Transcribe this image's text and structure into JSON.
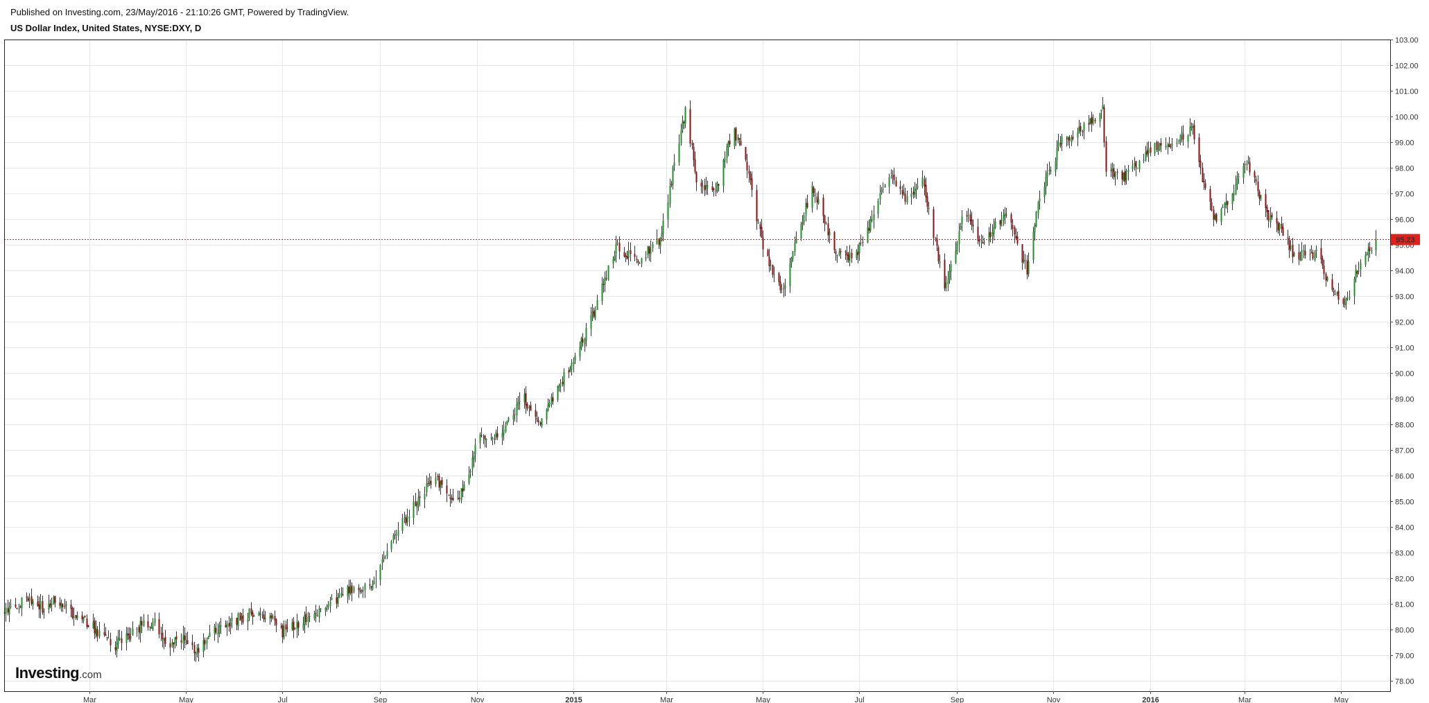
{
  "header": {
    "published": "Published on Investing.com, 23/May/2016 - 21:10:26 GMT, Powered by TradingView.",
    "title": "US Dollar Index, United States, NYSE:DXY, D"
  },
  "logo": {
    "main": "Investing",
    "suffix": ".com"
  },
  "colors": {
    "up": "#1e8f2a",
    "down": "#8b0f0f",
    "price_line": "#e0201b",
    "grid": "#e8e8e8",
    "frame": "#222222"
  },
  "chart_data": {
    "type": "candlestick",
    "ylim": [
      77.6,
      103.0
    ],
    "y_ticks": [
      "78.00",
      "79.00",
      "80.00",
      "81.00",
      "82.00",
      "83.00",
      "84.00",
      "85.00",
      "86.00",
      "87.00",
      "88.00",
      "89.00",
      "90.00",
      "91.00",
      "92.00",
      "93.00",
      "94.00",
      "95.00",
      "96.00",
      "97.00",
      "98.00",
      "99.00",
      "100.00",
      "101.00",
      "102.00",
      "103.00"
    ],
    "x_ticks": [
      {
        "label": "Mar",
        "date": "2014-03-01",
        "bold": false
      },
      {
        "label": "May",
        "date": "2014-05-01",
        "bold": false
      },
      {
        "label": "Jul",
        "date": "2014-07-01",
        "bold": false
      },
      {
        "label": "Sep",
        "date": "2014-09-01",
        "bold": false
      },
      {
        "label": "Nov",
        "date": "2014-11-01",
        "bold": false
      },
      {
        "label": "2015",
        "date": "2015-01-01",
        "bold": true
      },
      {
        "label": "Mar",
        "date": "2015-03-01",
        "bold": false
      },
      {
        "label": "May",
        "date": "2015-05-01",
        "bold": false
      },
      {
        "label": "Jul",
        "date": "2015-07-01",
        "bold": false
      },
      {
        "label": "Sep",
        "date": "2015-09-01",
        "bold": false
      },
      {
        "label": "Nov",
        "date": "2015-11-01",
        "bold": false
      },
      {
        "label": "2016",
        "date": "2016-01-01",
        "bold": true
      },
      {
        "label": "Mar",
        "date": "2016-03-01",
        "bold": false
      },
      {
        "label": "May",
        "date": "2016-05-01",
        "bold": false
      }
    ],
    "x_range": [
      "2014-01-06",
      "2016-06-01"
    ],
    "last_price": "95.23",
    "grid": true,
    "close_path": [
      [
        "2014-01-06",
        80.6
      ],
      [
        "2014-01-20",
        81.2
      ],
      [
        "2014-02-01",
        80.8
      ],
      [
        "2014-02-08",
        81.2
      ],
      [
        "2014-02-20",
        80.4
      ],
      [
        "2014-03-01",
        80.2
      ],
      [
        "2014-03-17",
        79.4
      ],
      [
        "2014-04-01",
        80.1
      ],
      [
        "2014-04-10",
        80.3
      ],
      [
        "2014-04-20",
        79.4
      ],
      [
        "2014-05-01",
        79.7
      ],
      [
        "2014-05-08",
        79.1
      ],
      [
        "2014-05-20",
        80.0
      ],
      [
        "2014-06-10",
        80.6
      ],
      [
        "2014-06-25",
        80.4
      ],
      [
        "2014-07-01",
        79.9
      ],
      [
        "2014-07-20",
        80.6
      ],
      [
        "2014-08-10",
        81.5
      ],
      [
        "2014-08-25",
        81.7
      ],
      [
        "2014-09-01",
        82.5
      ],
      [
        "2014-09-15",
        84.2
      ],
      [
        "2014-09-25",
        85.0
      ],
      [
        "2014-10-05",
        86.0
      ],
      [
        "2014-10-15",
        85.0
      ],
      [
        "2014-10-25",
        85.5
      ],
      [
        "2014-11-01",
        87.5
      ],
      [
        "2014-11-15",
        87.7
      ],
      [
        "2014-12-01",
        89.0
      ],
      [
        "2014-12-10",
        88.1
      ],
      [
        "2015-01-01",
        90.5
      ],
      [
        "2015-01-15",
        92.5
      ],
      [
        "2015-01-28",
        95.0
      ],
      [
        "2015-02-10",
        94.3
      ],
      [
        "2015-02-25",
        95.2
      ],
      [
        "2015-03-10",
        99.5
      ],
      [
        "2015-03-13",
        100.2
      ],
      [
        "2015-03-20",
        97.5
      ],
      [
        "2015-04-01",
        97.0
      ],
      [
        "2015-04-12",
        99.6
      ],
      [
        "2015-04-22",
        97.8
      ],
      [
        "2015-05-01",
        94.8
      ],
      [
        "2015-05-14",
        93.2
      ],
      [
        "2015-05-25",
        95.8
      ],
      [
        "2015-06-01",
        97.3
      ],
      [
        "2015-06-15",
        94.8
      ],
      [
        "2015-06-28",
        94.5
      ],
      [
        "2015-07-10",
        96.2
      ],
      [
        "2015-07-20",
        97.8
      ],
      [
        "2015-07-30",
        96.8
      ],
      [
        "2015-08-10",
        97.6
      ],
      [
        "2015-08-24",
        93.2
      ],
      [
        "2015-09-05",
        96.2
      ],
      [
        "2015-09-18",
        95.0
      ],
      [
        "2015-10-01",
        96.3
      ],
      [
        "2015-10-15",
        94.0
      ],
      [
        "2015-10-23",
        96.8
      ],
      [
        "2015-11-05",
        99.0
      ],
      [
        "2015-11-20",
        99.6
      ],
      [
        "2015-12-02",
        100.3
      ],
      [
        "2015-12-04",
        98.0
      ],
      [
        "2015-12-15",
        97.6
      ],
      [
        "2016-01-01",
        98.7
      ],
      [
        "2016-01-15",
        99.0
      ],
      [
        "2016-01-28",
        99.5
      ],
      [
        "2016-02-05",
        97.0
      ],
      [
        "2016-02-12",
        95.8
      ],
      [
        "2016-02-25",
        97.4
      ],
      [
        "2016-03-02",
        98.2
      ],
      [
        "2016-03-15",
        96.2
      ],
      [
        "2016-03-25",
        95.5
      ],
      [
        "2016-04-01",
        94.6
      ],
      [
        "2016-04-15",
        94.6
      ],
      [
        "2016-04-29",
        92.8
      ],
      [
        "2016-05-03",
        92.6
      ],
      [
        "2016-05-12",
        94.2
      ],
      [
        "2016-05-23",
        95.23
      ]
    ]
  }
}
